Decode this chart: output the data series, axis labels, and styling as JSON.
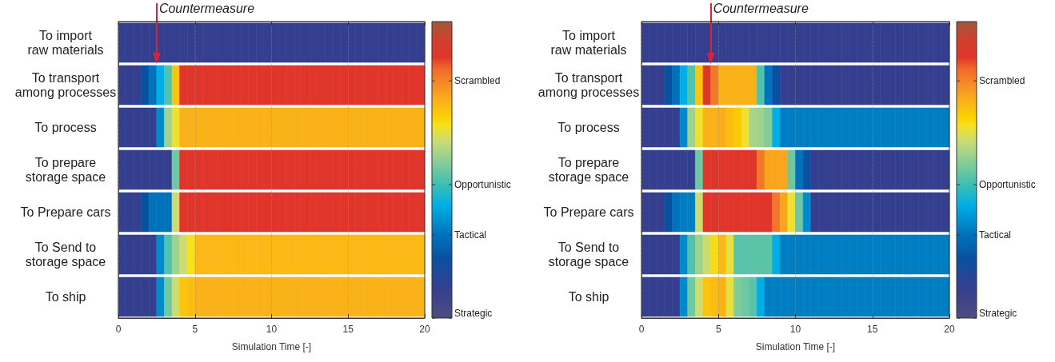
{
  "chart_data": [
    {
      "type": "heatmap",
      "xlabel": "Simulation Time [-]",
      "ref_lines": [
        {
          "axis": "x",
          "value": 2.5,
          "label": "Countermeasure",
          "color": "#e2202e"
        }
      ],
      "x": [
        0.25,
        0.75,
        1.25,
        1.75,
        2.25,
        2.75,
        3.25,
        3.75,
        4.25,
        4.75,
        5.25,
        5.75,
        6.25,
        6.75,
        7.25,
        7.75,
        8.25,
        8.75,
        9.25,
        9.75,
        10.25,
        10.75,
        11.25,
        11.75,
        12.25,
        12.75,
        13.25,
        13.75,
        14.25,
        14.75,
        15.25,
        15.75,
        16.25,
        16.75,
        17.25,
        17.75,
        18.25,
        18.75,
        19.25,
        19.75
      ],
      "y_categories": [
        "To import\nraw materials",
        "To transport\namong processes",
        "To process",
        "To prepare\nstorage space",
        "To Prepare cars",
        "To Send to\nstorage space",
        "To ship"
      ],
      "cells": [
        [
          0.1,
          0.1,
          0.1,
          0.1,
          0.1,
          0.1,
          0.1,
          0.1,
          0.1,
          0.1,
          0.1,
          0.1,
          0.1,
          0.1,
          0.1,
          0.1,
          0.1,
          0.1,
          0.1,
          0.1,
          0.1,
          0.1,
          0.1,
          0.1,
          0.1,
          0.1,
          0.1,
          0.1,
          0.1,
          0.1,
          0.1,
          0.1,
          0.1,
          0.1,
          0.1,
          0.1,
          0.1,
          0.1,
          0.1,
          0.1
        ],
        [
          0.1,
          0.1,
          0.1,
          0.2,
          0.28,
          0.38,
          0.47,
          0.7,
          0.88,
          0.88,
          0.88,
          0.88,
          0.88,
          0.88,
          0.88,
          0.88,
          0.88,
          0.88,
          0.88,
          0.88,
          0.88,
          0.88,
          0.88,
          0.88,
          0.88,
          0.88,
          0.88,
          0.88,
          0.88,
          0.88,
          0.88,
          0.88,
          0.88,
          0.88,
          0.88,
          0.88,
          0.88,
          0.88,
          0.88,
          0.88
        ],
        [
          0.1,
          0.1,
          0.1,
          0.1,
          0.1,
          0.32,
          0.55,
          0.64,
          0.73,
          0.73,
          0.73,
          0.73,
          0.73,
          0.73,
          0.73,
          0.73,
          0.73,
          0.73,
          0.73,
          0.73,
          0.73,
          0.73,
          0.73,
          0.73,
          0.73,
          0.73,
          0.73,
          0.73,
          0.73,
          0.73,
          0.73,
          0.73,
          0.73,
          0.73,
          0.73,
          0.73,
          0.73,
          0.73,
          0.73,
          0.73
        ],
        [
          0.1,
          0.1,
          0.1,
          0.1,
          0.1,
          0.1,
          0.1,
          0.5,
          0.88,
          0.88,
          0.88,
          0.88,
          0.88,
          0.88,
          0.88,
          0.88,
          0.88,
          0.88,
          0.88,
          0.88,
          0.88,
          0.88,
          0.88,
          0.88,
          0.88,
          0.88,
          0.88,
          0.88,
          0.88,
          0.88,
          0.88,
          0.88,
          0.88,
          0.88,
          0.88,
          0.88,
          0.88,
          0.88,
          0.88,
          0.88
        ],
        [
          0.1,
          0.1,
          0.1,
          0.2,
          0.28,
          0.28,
          0.28,
          0.6,
          0.88,
          0.88,
          0.88,
          0.88,
          0.88,
          0.88,
          0.88,
          0.88,
          0.88,
          0.88,
          0.88,
          0.88,
          0.88,
          0.88,
          0.88,
          0.88,
          0.88,
          0.88,
          0.88,
          0.88,
          0.88,
          0.88,
          0.88,
          0.88,
          0.88,
          0.88,
          0.88,
          0.88,
          0.88,
          0.88,
          0.88,
          0.88
        ],
        [
          0.1,
          0.1,
          0.1,
          0.1,
          0.1,
          0.32,
          0.47,
          0.55,
          0.6,
          0.65,
          0.72,
          0.72,
          0.72,
          0.72,
          0.72,
          0.72,
          0.72,
          0.72,
          0.72,
          0.72,
          0.72,
          0.72,
          0.72,
          0.72,
          0.72,
          0.72,
          0.72,
          0.72,
          0.72,
          0.72,
          0.72,
          0.72,
          0.72,
          0.72,
          0.72,
          0.72,
          0.72,
          0.72,
          0.72,
          0.72
        ],
        [
          0.1,
          0.1,
          0.1,
          0.1,
          0.1,
          0.32,
          0.5,
          0.6,
          0.7,
          0.71,
          0.73,
          0.73,
          0.73,
          0.73,
          0.73,
          0.73,
          0.73,
          0.73,
          0.73,
          0.73,
          0.73,
          0.73,
          0.73,
          0.73,
          0.73,
          0.73,
          0.73,
          0.73,
          0.73,
          0.73,
          0.73,
          0.73,
          0.73,
          0.73,
          0.73,
          0.73,
          0.73,
          0.73,
          0.73,
          0.73
        ]
      ],
      "xlim": [
        0,
        20
      ],
      "xticks": [
        0,
        5,
        10,
        15,
        20
      ],
      "grid": "x",
      "clim": [
        0,
        1
      ],
      "cticks": [
        {
          "value": 0,
          "label": "Strategic"
        },
        {
          "value": 0.28,
          "label": "Tactical"
        },
        {
          "value": 0.45,
          "label": "Opportunistic"
        },
        {
          "value": 0.8,
          "label": "Scrambled"
        }
      ]
    },
    {
      "type": "heatmap",
      "xlabel": "Simulation Time [-]",
      "ref_lines": [
        {
          "axis": "x",
          "value": 4.5,
          "label": "Countermeasure",
          "color": "#e2202e"
        }
      ],
      "x": [
        0.25,
        0.75,
        1.25,
        1.75,
        2.25,
        2.75,
        3.25,
        3.75,
        4.25,
        4.75,
        5.25,
        5.75,
        6.25,
        6.75,
        7.25,
        7.75,
        8.25,
        8.75,
        9.25,
        9.75,
        10.25,
        10.75,
        11.25,
        11.75,
        12.25,
        12.75,
        13.25,
        13.75,
        14.25,
        14.75,
        15.25,
        15.75,
        16.25,
        16.75,
        17.25,
        17.75,
        18.25,
        18.75,
        19.25,
        19.75
      ],
      "y_categories": [
        "To import\nraw materials",
        "To transport\namong processes",
        "To process",
        "To prepare\nstorage space",
        "To Prepare cars",
        "To Send to\nstorage space",
        "To ship"
      ],
      "cells": [
        [
          0.1,
          0.1,
          0.1,
          0.1,
          0.1,
          0.1,
          0.1,
          0.1,
          0.1,
          0.1,
          0.1,
          0.1,
          0.1,
          0.1,
          0.1,
          0.1,
          0.1,
          0.1,
          0.1,
          0.1,
          0.1,
          0.1,
          0.1,
          0.1,
          0.1,
          0.1,
          0.1,
          0.1,
          0.1,
          0.1,
          0.1,
          0.1,
          0.1,
          0.1,
          0.1,
          0.1,
          0.1,
          0.1,
          0.1,
          0.1
        ],
        [
          0.1,
          0.1,
          0.1,
          0.2,
          0.28,
          0.38,
          0.47,
          0.7,
          0.88,
          0.82,
          0.73,
          0.73,
          0.73,
          0.73,
          0.73,
          0.47,
          0.28,
          0.2,
          0.1,
          0.1,
          0.1,
          0.1,
          0.1,
          0.1,
          0.1,
          0.1,
          0.1,
          0.1,
          0.1,
          0.1,
          0.1,
          0.1,
          0.1,
          0.1,
          0.1,
          0.1,
          0.1,
          0.1,
          0.1,
          0.1
        ],
        [
          0.1,
          0.1,
          0.1,
          0.1,
          0.1,
          0.32,
          0.55,
          0.64,
          0.73,
          0.73,
          0.74,
          0.71,
          0.69,
          0.64,
          0.56,
          0.55,
          0.52,
          0.38,
          0.3,
          0.3,
          0.3,
          0.3,
          0.3,
          0.3,
          0.3,
          0.3,
          0.3,
          0.3,
          0.3,
          0.3,
          0.3,
          0.3,
          0.3,
          0.3,
          0.3,
          0.3,
          0.3,
          0.3,
          0.3,
          0.3
        ],
        [
          0.1,
          0.1,
          0.1,
          0.1,
          0.1,
          0.1,
          0.1,
          0.5,
          0.88,
          0.88,
          0.88,
          0.88,
          0.88,
          0.88,
          0.88,
          0.82,
          0.75,
          0.75,
          0.75,
          0.5,
          0.28,
          0.2,
          0.1,
          0.1,
          0.1,
          0.1,
          0.1,
          0.1,
          0.1,
          0.1,
          0.1,
          0.1,
          0.1,
          0.1,
          0.1,
          0.1,
          0.1,
          0.1,
          0.1,
          0.1
        ],
        [
          0.1,
          0.1,
          0.1,
          0.2,
          0.28,
          0.3,
          0.3,
          0.6,
          0.88,
          0.88,
          0.88,
          0.88,
          0.88,
          0.88,
          0.88,
          0.88,
          0.88,
          0.82,
          0.75,
          0.64,
          0.5,
          0.32,
          0.1,
          0.1,
          0.1,
          0.1,
          0.1,
          0.1,
          0.1,
          0.1,
          0.1,
          0.1,
          0.1,
          0.1,
          0.1,
          0.1,
          0.1,
          0.1,
          0.1,
          0.1
        ],
        [
          0.1,
          0.1,
          0.1,
          0.1,
          0.1,
          0.32,
          0.47,
          0.55,
          0.6,
          0.66,
          0.72,
          0.63,
          0.48,
          0.48,
          0.48,
          0.48,
          0.48,
          0.38,
          0.3,
          0.3,
          0.3,
          0.3,
          0.3,
          0.3,
          0.3,
          0.3,
          0.3,
          0.3,
          0.3,
          0.3,
          0.3,
          0.3,
          0.3,
          0.3,
          0.3,
          0.3,
          0.3,
          0.3,
          0.3,
          0.3
        ],
        [
          0.1,
          0.1,
          0.1,
          0.1,
          0.1,
          0.32,
          0.5,
          0.6,
          0.7,
          0.71,
          0.73,
          0.63,
          0.52,
          0.5,
          0.48,
          0.38,
          0.3,
          0.3,
          0.3,
          0.3,
          0.3,
          0.3,
          0.3,
          0.3,
          0.3,
          0.3,
          0.3,
          0.3,
          0.3,
          0.3,
          0.3,
          0.3,
          0.3,
          0.3,
          0.3,
          0.3,
          0.3,
          0.3,
          0.3,
          0.3
        ]
      ],
      "xlim": [
        0,
        20
      ],
      "xticks": [
        0,
        5,
        10,
        15,
        20
      ],
      "grid": "x",
      "clim": [
        0,
        1
      ],
      "cticks": [
        {
          "value": 0,
          "label": "Strategic"
        },
        {
          "value": 0.28,
          "label": "Tactical"
        },
        {
          "value": 0.45,
          "label": "Opportunistic"
        },
        {
          "value": 0.8,
          "label": "Scrambled"
        }
      ]
    }
  ]
}
